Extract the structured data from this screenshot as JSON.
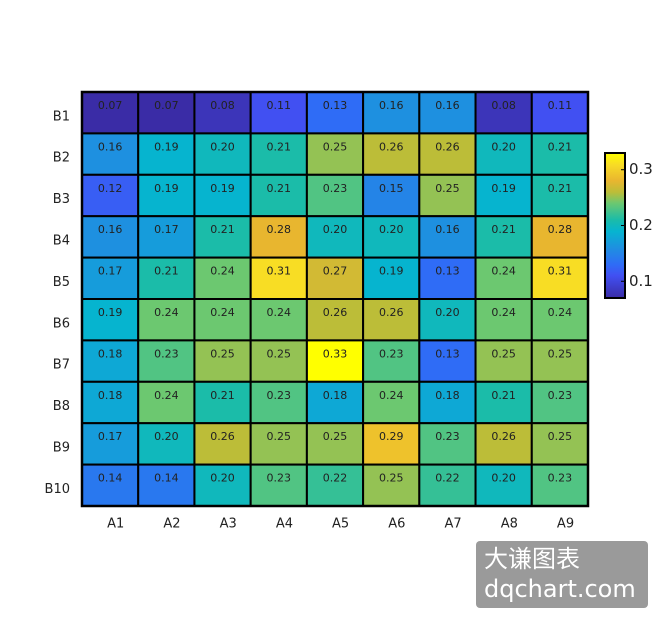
{
  "chart_data": {
    "type": "heatmap",
    "x_categories": [
      "A1",
      "A2",
      "A3",
      "A4",
      "A5",
      "A6",
      "A7",
      "A8",
      "A9"
    ],
    "y_categories": [
      "B1",
      "B2",
      "B3",
      "B4",
      "B5",
      "B6",
      "B7",
      "B8",
      "B9",
      "B10"
    ],
    "values": [
      [
        0.07,
        0.07,
        0.08,
        0.11,
        0.13,
        0.16,
        0.16,
        0.08,
        0.11
      ],
      [
        0.16,
        0.19,
        0.2,
        0.21,
        0.25,
        0.26,
        0.26,
        0.2,
        0.21
      ],
      [
        0.12,
        0.19,
        0.19,
        0.21,
        0.23,
        0.15,
        0.25,
        0.19,
        0.21
      ],
      [
        0.16,
        0.17,
        0.21,
        0.28,
        0.2,
        0.2,
        0.16,
        0.21,
        0.28
      ],
      [
        0.17,
        0.21,
        0.24,
        0.31,
        0.27,
        0.19,
        0.13,
        0.24,
        0.31
      ],
      [
        0.19,
        0.24,
        0.24,
        0.24,
        0.26,
        0.26,
        0.2,
        0.24,
        0.24
      ],
      [
        0.18,
        0.23,
        0.25,
        0.25,
        0.33,
        0.23,
        0.13,
        0.25,
        0.25
      ],
      [
        0.18,
        0.24,
        0.21,
        0.23,
        0.18,
        0.24,
        0.18,
        0.21,
        0.23
      ],
      [
        0.17,
        0.2,
        0.26,
        0.25,
        0.25,
        0.29,
        0.23,
        0.26,
        0.25
      ],
      [
        0.14,
        0.14,
        0.2,
        0.23,
        0.22,
        0.25,
        0.22,
        0.2,
        0.23
      ]
    ],
    "value_labels": [
      [
        "0.07",
        "0.07",
        "0.08",
        "0.11",
        "0.13",
        "0.16",
        "0.16",
        "0.08",
        "0.11"
      ],
      [
        "0.16",
        "0.19",
        "0.20",
        "0.21",
        "0.25",
        "0.26",
        "0.26",
        "0.20",
        "0.21"
      ],
      [
        "0.12",
        "0.19",
        "0.19",
        "0.21",
        "0.23",
        "0.15",
        "0.25",
        "0.19",
        "0.21"
      ],
      [
        "0.16",
        "0.17",
        "0.21",
        "0.28",
        "0.20",
        "0.20",
        "0.16",
        "0.21",
        "0.28"
      ],
      [
        "0.17",
        "0.21",
        "0.24",
        "0.31",
        "0.27",
        "0.19",
        "0.13",
        "0.24",
        "0.31"
      ],
      [
        "0.19",
        "0.24",
        "0.24",
        "0.24",
        "0.26",
        "0.26",
        "0.20",
        "0.24",
        "0.24"
      ],
      [
        "0.18",
        "0.23",
        "0.25",
        "0.25",
        "0.33",
        "0.23",
        "0.13",
        "0.25",
        "0.25"
      ],
      [
        "0.18",
        "0.24",
        "0.21",
        "0.23",
        "0.18",
        "0.24",
        "0.18",
        "0.21",
        "0.23"
      ],
      [
        "0.17",
        "0.20",
        "0.26",
        "0.25",
        "0.25",
        "0.29",
        "0.23",
        "0.26",
        "0.25"
      ],
      [
        "0.14",
        "0.14",
        "0.20",
        "0.23",
        "0.22",
        "0.25",
        "0.22",
        "0.20",
        "0.23"
      ]
    ],
    "zlim": [
      0.07,
      0.33
    ],
    "colorbar_ticks": [
      0.1,
      0.2,
      0.3
    ]
  },
  "watermark": [
    "大谦图表",
    "dqchart.com"
  ]
}
